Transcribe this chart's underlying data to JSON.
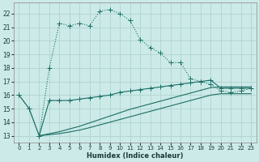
{
  "xlabel": "Humidex (Indice chaleur)",
  "background_color": "#cceae8",
  "grid_color": "#b0d4d0",
  "line_color": "#1a6e64",
  "x_ticks": [
    0,
    1,
    2,
    3,
    4,
    5,
    6,
    7,
    8,
    9,
    10,
    11,
    12,
    13,
    14,
    15,
    16,
    17,
    18,
    19,
    20,
    21,
    22,
    23
  ],
  "y_ticks": [
    13,
    14,
    15,
    16,
    17,
    18,
    19,
    20,
    21,
    22
  ],
  "ylim": [
    12.5,
    22.8
  ],
  "xlim": [
    -0.5,
    23.5
  ],
  "line1_x": [
    0,
    1,
    2,
    3,
    4,
    5,
    6,
    7,
    8,
    9,
    10,
    11,
    12,
    13,
    14,
    15,
    16,
    17,
    18,
    19,
    20,
    21,
    22,
    23
  ],
  "line1_y": [
    16.0,
    15.0,
    13.0,
    18.0,
    21.3,
    21.1,
    21.3,
    21.1,
    22.2,
    22.3,
    22.0,
    21.5,
    20.1,
    19.5,
    19.1,
    18.4,
    18.4,
    17.2,
    17.0,
    16.8,
    16.3,
    16.2,
    16.3,
    16.5
  ],
  "line2_x": [
    0,
    1,
    2,
    3,
    4,
    5,
    6,
    7,
    8,
    9,
    10,
    11,
    12,
    13,
    14,
    15,
    16,
    17,
    18,
    19,
    20,
    21,
    22,
    23
  ],
  "line2_y": [
    16.0,
    15.0,
    13.0,
    15.6,
    15.6,
    15.6,
    15.7,
    15.8,
    15.9,
    16.0,
    16.2,
    16.3,
    16.4,
    16.5,
    16.6,
    16.7,
    16.8,
    16.9,
    17.0,
    17.1,
    16.5,
    16.5,
    16.5,
    16.5
  ],
  "line3_x": [
    2,
    3,
    4,
    5,
    6,
    7,
    8,
    9,
    10,
    11,
    12,
    13,
    14,
    15,
    16,
    17,
    18,
    19,
    20,
    21,
    22,
    23
  ],
  "line3_y": [
    13.0,
    13.15,
    13.3,
    13.5,
    13.7,
    13.95,
    14.2,
    14.45,
    14.7,
    14.95,
    15.15,
    15.35,
    15.55,
    15.75,
    15.95,
    16.15,
    16.35,
    16.55,
    16.6,
    16.6,
    16.6,
    16.6
  ],
  "line4_x": [
    2,
    3,
    4,
    5,
    6,
    7,
    8,
    9,
    10,
    11,
    12,
    13,
    14,
    15,
    16,
    17,
    18,
    19,
    20,
    21,
    22,
    23
  ],
  "line4_y": [
    13.0,
    13.08,
    13.16,
    13.28,
    13.42,
    13.6,
    13.8,
    14.0,
    14.2,
    14.4,
    14.6,
    14.8,
    15.0,
    15.2,
    15.4,
    15.6,
    15.8,
    16.0,
    16.1,
    16.1,
    16.1,
    16.1
  ]
}
